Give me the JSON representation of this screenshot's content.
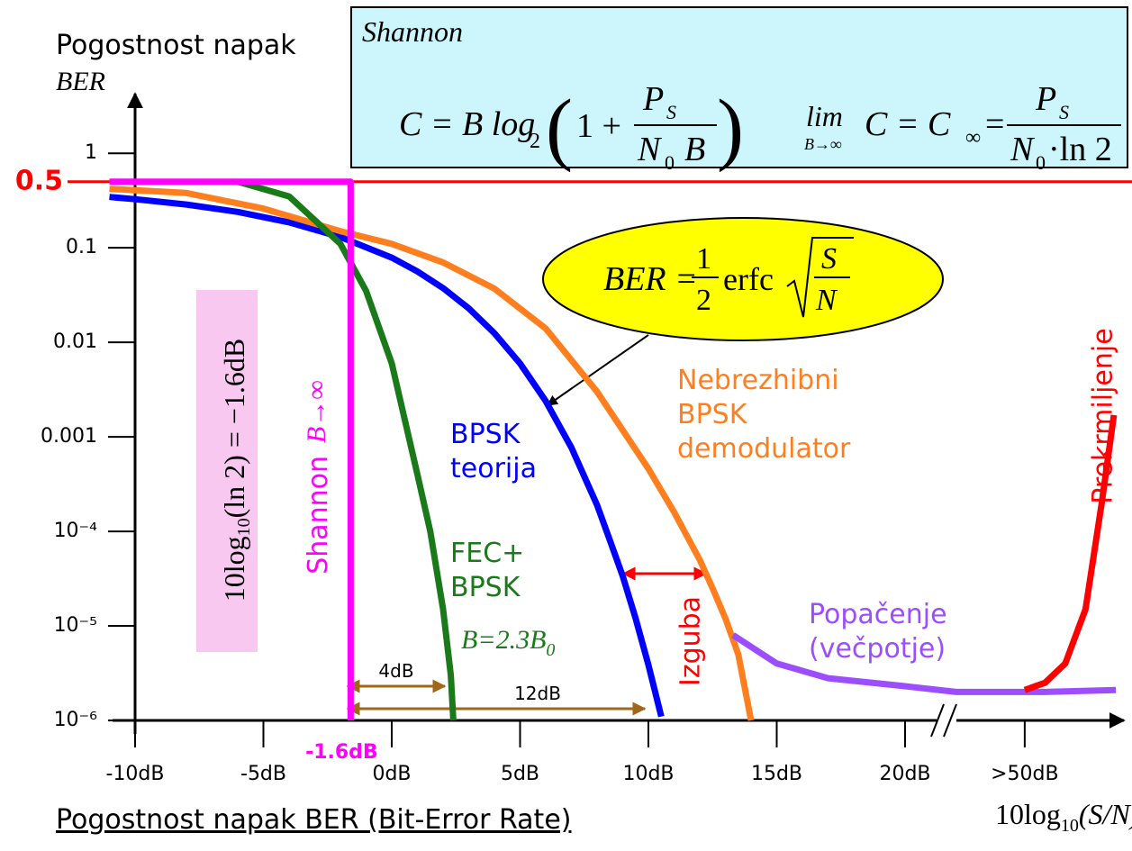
{
  "chart_data": {
    "type": "line",
    "y_title": "Pogostnost napak",
    "y_symbol": "BER",
    "x_title": {
      "main": "10log",
      "sub": "10",
      "tail": "(S/N)"
    },
    "footer": "Pogostnost napak BER (Bit-Error Rate)",
    "ylog": true,
    "xbreak": true,
    "xlim": [
      -11,
      95
    ],
    "ylim": [
      1e-06,
      4
    ],
    "xticks": [
      {
        "value": -10,
        "label": "-10dB"
      },
      {
        "value": -5,
        "label": "-5dB"
      },
      {
        "value": 0,
        "label": "0dB"
      },
      {
        "value": 5,
        "label": "5dB"
      },
      {
        "value": 10,
        "label": "10dB"
      },
      {
        "value": 15,
        "label": "15dB"
      },
      {
        "value": 20,
        "label": "20dB"
      },
      {
        "value": 50,
        "label": ">50dB"
      }
    ],
    "yticks": [
      1,
      0.1,
      0.01,
      0.001,
      {
        "value": 0.0001,
        "label": "10⁻⁴"
      },
      {
        "value": 1e-05,
        "label": "10⁻⁵"
      },
      {
        "value": 1e-06,
        "label": "10⁻⁶"
      }
    ],
    "reference_line": {
      "value": 0.5,
      "label": "0.5",
      "color": "#ff0000"
    },
    "shannon_limit": {
      "value": -1.6,
      "label": "-1.6dB",
      "color": "#ff00ff"
    },
    "series": [
      {
        "name": "BPSK\nteorija",
        "color": "#0000ff",
        "x": [
          -11,
          -10,
          -8,
          -6,
          -4,
          -2,
          0,
          1,
          2,
          3,
          4,
          5,
          6,
          7,
          8,
          8.5,
          9,
          9.5,
          10,
          10.5
        ],
        "values": [
          0.345,
          0.327,
          0.287,
          0.24,
          0.186,
          0.13,
          0.0786,
          0.0563,
          0.0375,
          0.0229,
          0.0125,
          0.00597,
          0.00239,
          0.00077,
          0.00019,
          8e-05,
          3.36e-05,
          1.2e-05,
          3.87e-06,
          1.1e-06
        ]
      },
      {
        "name": "Nebrezhibni\nBPSK\ndemodulator",
        "color": "#ff7f1e",
        "x": [
          -11,
          -8,
          -5,
          -2,
          0,
          2,
          4,
          6,
          8,
          10,
          11,
          12,
          12.5,
          13,
          13.5,
          14
        ],
        "values": [
          0.42,
          0.38,
          0.26,
          0.15,
          0.11,
          0.07,
          0.037,
          0.014,
          0.003,
          0.00046,
          0.00016,
          5e-05,
          2.5e-05,
          1.2e-05,
          5e-06,
          1e-06
        ]
      },
      {
        "name": "FEC+\nBPSK",
        "color": "#1a7a1a",
        "x": [
          -6,
          -4,
          -2,
          -1,
          0,
          1,
          1.5,
          2,
          2.3,
          2.4
        ],
        "values": [
          0.5,
          0.35,
          0.11,
          0.035,
          0.006,
          0.0004,
          0.0001,
          1.5e-05,
          3e-06,
          1e-06
        ]
      },
      {
        "name": "Shannon",
        "color": "#ff00ff",
        "x": [
          -11,
          -1.6,
          -1.6
        ],
        "values": [
          0.5,
          0.5,
          1e-06
        ]
      },
      {
        "name": "Popačenje\n(večpotje)",
        "color": "#9b4dff",
        "x": [
          13.3,
          15,
          17,
          20,
          22,
          50,
          60,
          95
        ],
        "values": [
          8e-06,
          4e-06,
          2.8e-06,
          2.3e-06,
          2e-06,
          2e-06,
          2e-06,
          2.1e-06
        ]
      },
      {
        "name": "Prekrmiljenje",
        "color": "#ff0000",
        "x": [
          50,
          60,
          70,
          80,
          88,
          94
        ],
        "values": [
          2.1e-06,
          2.5e-06,
          4e-06,
          1.5e-05,
          0.0002,
          0.0017
        ]
      }
    ],
    "annotations": {
      "shannon_box": {
        "title": "Shannon",
        "capacity": {
          "lhs": "C = B log",
          "base": "2",
          "open": "(",
          "one": "1 +",
          "num": "P",
          "num_sub": "S",
          "den": "N",
          "den_sub": "0",
          "den_tail": "B",
          "close": ")"
        },
        "limit": {
          "lim": "lim",
          "under": "B→∞",
          "lhs": "C = C",
          "lhs_sub": "∞",
          "eq": "=",
          "num": "P",
          "num_sub": "S",
          "den": "N",
          "den_sub": "0",
          "den_tail": "·ln 2"
        }
      },
      "ber_formula": {
        "lhs": "BER =",
        "num": "1",
        "den": "2",
        "fn": "erfc",
        "rnum": "S",
        "rden": "N"
      },
      "limit_formula": {
        "main": "10log",
        "sub": "10",
        "tail": "(ln 2) = −1.6dB"
      },
      "shannon_condition": "B→∞",
      "fec_bandwidth": {
        "main": "B=2.3B",
        "sub": "0"
      },
      "loss": "Izguba",
      "gain_fec": "4dB",
      "gain_bpsk": "12dB"
    }
  }
}
